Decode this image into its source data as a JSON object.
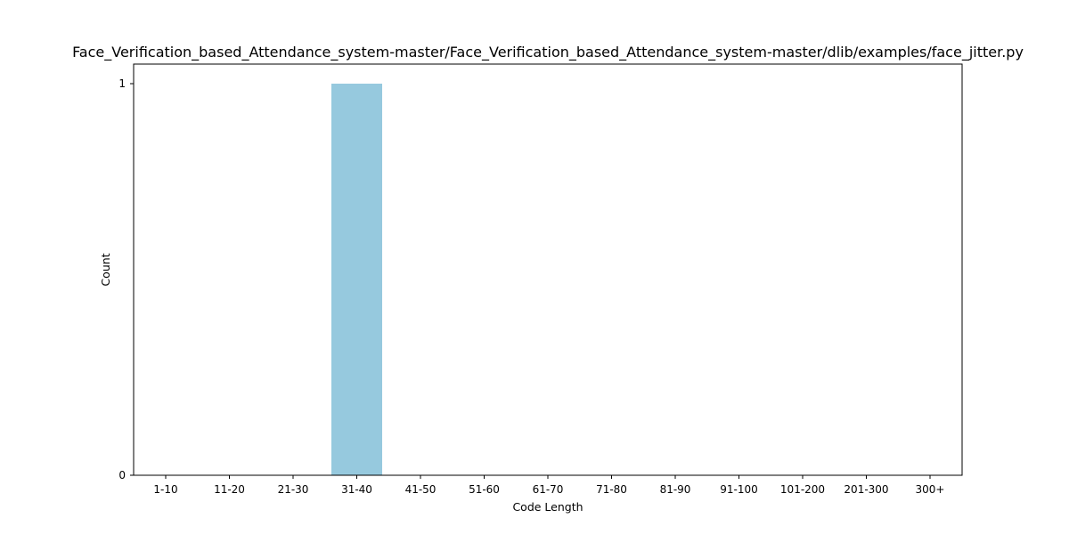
{
  "chart_data": {
    "type": "bar",
    "title": "Face_Verification_based_Attendance_system-master/Face_Verification_based_Attendance_system-master/dlib/examples/face_jitter.py",
    "xlabel": "Code Length",
    "ylabel": "Count",
    "categories": [
      "1-10",
      "11-20",
      "21-30",
      "31-40",
      "41-50",
      "51-60",
      "61-70",
      "71-80",
      "81-90",
      "91-100",
      "101-200",
      "201-300",
      "300+"
    ],
    "values": [
      0,
      0,
      0,
      1,
      0,
      0,
      0,
      0,
      0,
      0,
      0,
      0,
      0
    ],
    "ylim": [
      0,
      1.05
    ],
    "yticks": [
      0,
      1
    ],
    "grid": false,
    "bar_color": "#96c9de"
  }
}
